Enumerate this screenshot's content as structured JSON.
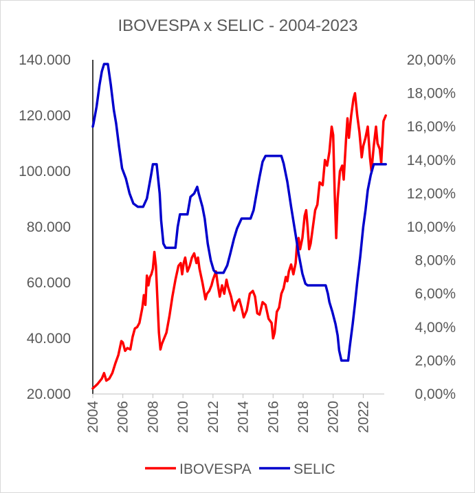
{
  "chart_data": {
    "type": "line",
    "title": "IBOVESPA x SELIC - 2004-2023",
    "xlim": [
      2004,
      2023.4
    ],
    "x_ticks": [
      "2004",
      "2006",
      "2008",
      "2010",
      "2012",
      "2014",
      "2016",
      "2018",
      "2020",
      "2022"
    ],
    "y_left": {
      "range": [
        20000,
        140000
      ],
      "ticks": [
        "20.000",
        "40.000",
        "60.000",
        "80.000",
        "100.000",
        "120.000",
        "140.000"
      ]
    },
    "y_right": {
      "range": [
        0,
        20
      ],
      "ticks": [
        "0,00%",
        "2,00%",
        "4,00%",
        "6,00%",
        "8,00%",
        "10,00%",
        "12,00%",
        "14,00%",
        "16,00%",
        "18,00%",
        "20,00%"
      ]
    },
    "grid": false,
    "legend_position": "bottom",
    "series": [
      {
        "name": "IBOVESPA",
        "axis": "left",
        "color": "#ff0000",
        "points": [
          [
            2004.0,
            22000
          ],
          [
            2004.3,
            23500
          ],
          [
            2004.6,
            25500
          ],
          [
            2004.75,
            27500
          ],
          [
            2004.9,
            24800
          ],
          [
            2005.1,
            25500
          ],
          [
            2005.3,
            27500
          ],
          [
            2005.5,
            31000
          ],
          [
            2005.7,
            34000
          ],
          [
            2005.9,
            39000
          ],
          [
            2006.0,
            38500
          ],
          [
            2006.15,
            35500
          ],
          [
            2006.3,
            36500
          ],
          [
            2006.5,
            36000
          ],
          [
            2006.65,
            40500
          ],
          [
            2006.8,
            43500
          ],
          [
            2006.95,
            44000
          ],
          [
            2007.1,
            45500
          ],
          [
            2007.3,
            51000
          ],
          [
            2007.4,
            55500
          ],
          [
            2007.5,
            52000
          ],
          [
            2007.6,
            62500
          ],
          [
            2007.7,
            59000
          ],
          [
            2007.8,
            62000
          ],
          [
            2007.9,
            63000
          ],
          [
            2008.0,
            65000
          ],
          [
            2008.1,
            71000
          ],
          [
            2008.2,
            66000
          ],
          [
            2008.3,
            54000
          ],
          [
            2008.4,
            42000
          ],
          [
            2008.5,
            36000
          ],
          [
            2008.6,
            38000
          ],
          [
            2008.75,
            40000
          ],
          [
            2008.9,
            42000
          ],
          [
            2009.1,
            48000
          ],
          [
            2009.3,
            55000
          ],
          [
            2009.5,
            61000
          ],
          [
            2009.7,
            66000
          ],
          [
            2009.85,
            67000
          ],
          [
            2009.95,
            63000
          ],
          [
            2010.05,
            67000
          ],
          [
            2010.15,
            69000
          ],
          [
            2010.3,
            64000
          ],
          [
            2010.45,
            66000
          ],
          [
            2010.6,
            69000
          ],
          [
            2010.75,
            70500
          ],
          [
            2010.9,
            67000
          ],
          [
            2011.0,
            69000
          ],
          [
            2011.1,
            65000
          ],
          [
            2011.3,
            60000
          ],
          [
            2011.4,
            57000
          ],
          [
            2011.5,
            54000
          ],
          [
            2011.6,
            56000
          ],
          [
            2011.75,
            57000
          ],
          [
            2011.9,
            59000
          ],
          [
            2012.0,
            61000
          ],
          [
            2012.2,
            64000
          ],
          [
            2012.3,
            60000
          ],
          [
            2012.45,
            55000
          ],
          [
            2012.6,
            59000
          ],
          [
            2012.75,
            56000
          ],
          [
            2012.9,
            61000
          ],
          [
            2013.0,
            58500
          ],
          [
            2013.2,
            55000
          ],
          [
            2013.4,
            50000
          ],
          [
            2013.6,
            53000
          ],
          [
            2013.75,
            54000
          ],
          [
            2013.9,
            51000
          ],
          [
            2014.05,
            47500
          ],
          [
            2014.25,
            50000
          ],
          [
            2014.45,
            56000
          ],
          [
            2014.65,
            57000
          ],
          [
            2014.8,
            55000
          ],
          [
            2014.95,
            49000
          ],
          [
            2015.1,
            48500
          ],
          [
            2015.3,
            53000
          ],
          [
            2015.5,
            52000
          ],
          [
            2015.7,
            47000
          ],
          [
            2015.9,
            45500
          ],
          [
            2016.0,
            40000
          ],
          [
            2016.1,
            42000
          ],
          [
            2016.25,
            49500
          ],
          [
            2016.4,
            51000
          ],
          [
            2016.55,
            56000
          ],
          [
            2016.7,
            58000
          ],
          [
            2016.85,
            62000
          ],
          [
            2016.95,
            60500
          ],
          [
            2017.05,
            64000
          ],
          [
            2017.2,
            66500
          ],
          [
            2017.35,
            63000
          ],
          [
            2017.5,
            67000
          ],
          [
            2017.6,
            74000
          ],
          [
            2017.7,
            76000
          ],
          [
            2017.8,
            72000
          ],
          [
            2017.95,
            76000
          ],
          [
            2018.1,
            84000
          ],
          [
            2018.2,
            86000
          ],
          [
            2018.3,
            80000
          ],
          [
            2018.4,
            72000
          ],
          [
            2018.5,
            74000
          ],
          [
            2018.65,
            80000
          ],
          [
            2018.8,
            86000
          ],
          [
            2018.95,
            88000
          ],
          [
            2019.1,
            96000
          ],
          [
            2019.3,
            95000
          ],
          [
            2019.45,
            104000
          ],
          [
            2019.6,
            102000
          ],
          [
            2019.75,
            107000
          ],
          [
            2019.9,
            116000
          ],
          [
            2020.0,
            113000
          ],
          [
            2020.1,
            92000
          ],
          [
            2020.2,
            76000
          ],
          [
            2020.3,
            90000
          ],
          [
            2020.45,
            100000
          ],
          [
            2020.6,
            102000
          ],
          [
            2020.7,
            97000
          ],
          [
            2020.85,
            111000
          ],
          [
            2020.95,
            119000
          ],
          [
            2021.05,
            112000
          ],
          [
            2021.2,
            120000
          ],
          [
            2021.35,
            126000
          ],
          [
            2021.45,
            128000
          ],
          [
            2021.6,
            120000
          ],
          [
            2021.75,
            114000
          ],
          [
            2021.9,
            105000
          ],
          [
            2022.0,
            109000
          ],
          [
            2022.15,
            112000
          ],
          [
            2022.3,
            116000
          ],
          [
            2022.45,
            105000
          ],
          [
            2022.55,
            100000
          ],
          [
            2022.7,
            109000
          ],
          [
            2022.85,
            116000
          ],
          [
            2022.95,
            110000
          ],
          [
            2023.1,
            108000
          ],
          [
            2023.2,
            103000
          ],
          [
            2023.35,
            118000
          ],
          [
            2023.5,
            120000
          ]
        ]
      },
      {
        "name": "SELIC",
        "axis": "right",
        "color": "#0000cc",
        "points": [
          [
            2004.0,
            16.0
          ],
          [
            2004.05,
            16.2
          ],
          [
            2004.25,
            17.2
          ],
          [
            2004.45,
            18.5
          ],
          [
            2004.6,
            19.3
          ],
          [
            2004.75,
            19.75
          ],
          [
            2005.0,
            19.75
          ],
          [
            2005.2,
            18.5
          ],
          [
            2005.4,
            17.0
          ],
          [
            2005.55,
            16.2
          ],
          [
            2005.75,
            14.8
          ],
          [
            2005.95,
            13.5
          ],
          [
            2006.2,
            12.9
          ],
          [
            2006.45,
            12.0
          ],
          [
            2006.7,
            11.4
          ],
          [
            2007.0,
            11.2
          ],
          [
            2007.35,
            11.2
          ],
          [
            2007.6,
            11.7
          ],
          [
            2007.9,
            13.2
          ],
          [
            2008.0,
            13.75
          ],
          [
            2008.25,
            13.75
          ],
          [
            2008.45,
            12.0
          ],
          [
            2008.55,
            10.4
          ],
          [
            2008.7,
            9.0
          ],
          [
            2008.85,
            8.75
          ],
          [
            2009.5,
            8.75
          ],
          [
            2009.65,
            10.0
          ],
          [
            2009.8,
            10.75
          ],
          [
            2010.0,
            10.75
          ],
          [
            2010.3,
            10.75
          ],
          [
            2010.5,
            11.8
          ],
          [
            2010.75,
            12.0
          ],
          [
            2010.95,
            12.4
          ],
          [
            2011.05,
            12.0
          ],
          [
            2011.3,
            11.2
          ],
          [
            2011.45,
            10.5
          ],
          [
            2011.65,
            9.0
          ],
          [
            2011.85,
            8.0
          ],
          [
            2012.05,
            7.4
          ],
          [
            2012.2,
            7.25
          ],
          [
            2012.7,
            7.25
          ],
          [
            2012.95,
            7.7
          ],
          [
            2013.15,
            8.4
          ],
          [
            2013.4,
            9.3
          ],
          [
            2013.6,
            9.9
          ],
          [
            2013.9,
            10.5
          ],
          [
            2014.5,
            10.5
          ],
          [
            2014.7,
            11.0
          ],
          [
            2014.9,
            12.0
          ],
          [
            2015.1,
            13.0
          ],
          [
            2015.3,
            13.9
          ],
          [
            2015.5,
            14.25
          ],
          [
            2016.55,
            14.25
          ],
          [
            2016.7,
            13.8
          ],
          [
            2016.95,
            12.7
          ],
          [
            2017.2,
            11.2
          ],
          [
            2017.45,
            9.8
          ],
          [
            2017.7,
            8.4
          ],
          [
            2017.95,
            7.2
          ],
          [
            2018.15,
            6.6
          ],
          [
            2018.3,
            6.5
          ],
          [
            2019.5,
            6.5
          ],
          [
            2019.65,
            6.0
          ],
          [
            2019.75,
            5.5
          ],
          [
            2019.95,
            4.9
          ],
          [
            2020.15,
            4.2
          ],
          [
            2020.3,
            3.5
          ],
          [
            2020.4,
            2.6
          ],
          [
            2020.55,
            2.0
          ],
          [
            2021.0,
            2.0
          ],
          [
            2021.1,
            2.8
          ],
          [
            2021.3,
            4.2
          ],
          [
            2021.45,
            5.4
          ],
          [
            2021.6,
            6.7
          ],
          [
            2021.8,
            8.2
          ],
          [
            2022.0,
            10.0
          ],
          [
            2022.15,
            11.0
          ],
          [
            2022.3,
            12.2
          ],
          [
            2022.5,
            13.1
          ],
          [
            2022.7,
            13.75
          ],
          [
            2023.5,
            13.75
          ]
        ]
      }
    ]
  }
}
